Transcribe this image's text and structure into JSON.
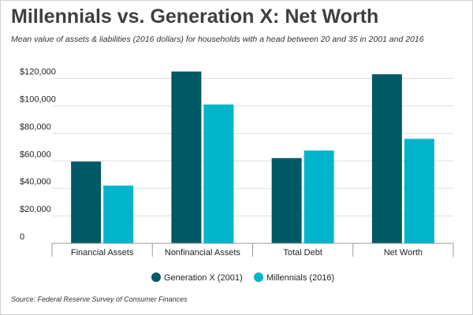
{
  "header": {
    "title": "Millennials vs. Generation X: Net Worth",
    "subtitle": "Mean value of assets & liabilities (2016 dollars) for households with a head between 20 and 35 in 2001 and 2016"
  },
  "footer": {
    "source": "Source: Federal Reserve Survey of Consumer Finances"
  },
  "chart_data": {
    "type": "bar",
    "title": "Millennials vs. Generation X: Net Worth",
    "subtitle": "Mean value of assets & liabilities (2016 dollars) for households with a head between 20 and 35 in 2001 and 2016",
    "categories": [
      "Financial Assets",
      "Nonfinancial Assets",
      "Total Debt",
      "Net Worth"
    ],
    "series": [
      {
        "name": "Generation X (2001)",
        "color": "#005a66",
        "values": [
          59500,
          125000,
          62000,
          123000
        ]
      },
      {
        "name": "Millennials (2016)",
        "color": "#00b4cc",
        "values": [
          42000,
          101000,
          67500,
          76000
        ]
      }
    ],
    "yticks": [
      0,
      20000,
      40000,
      60000,
      80000,
      100000,
      120000
    ],
    "ytick_labels": [
      "0",
      "$20,000",
      "$40,000",
      "$60,000",
      "$80,000",
      "$100,000",
      "$120,000"
    ],
    "ylim": [
      0,
      120000
    ],
    "xlabel": "",
    "ylabel": "",
    "grid": true,
    "legend_position": "bottom-center"
  }
}
